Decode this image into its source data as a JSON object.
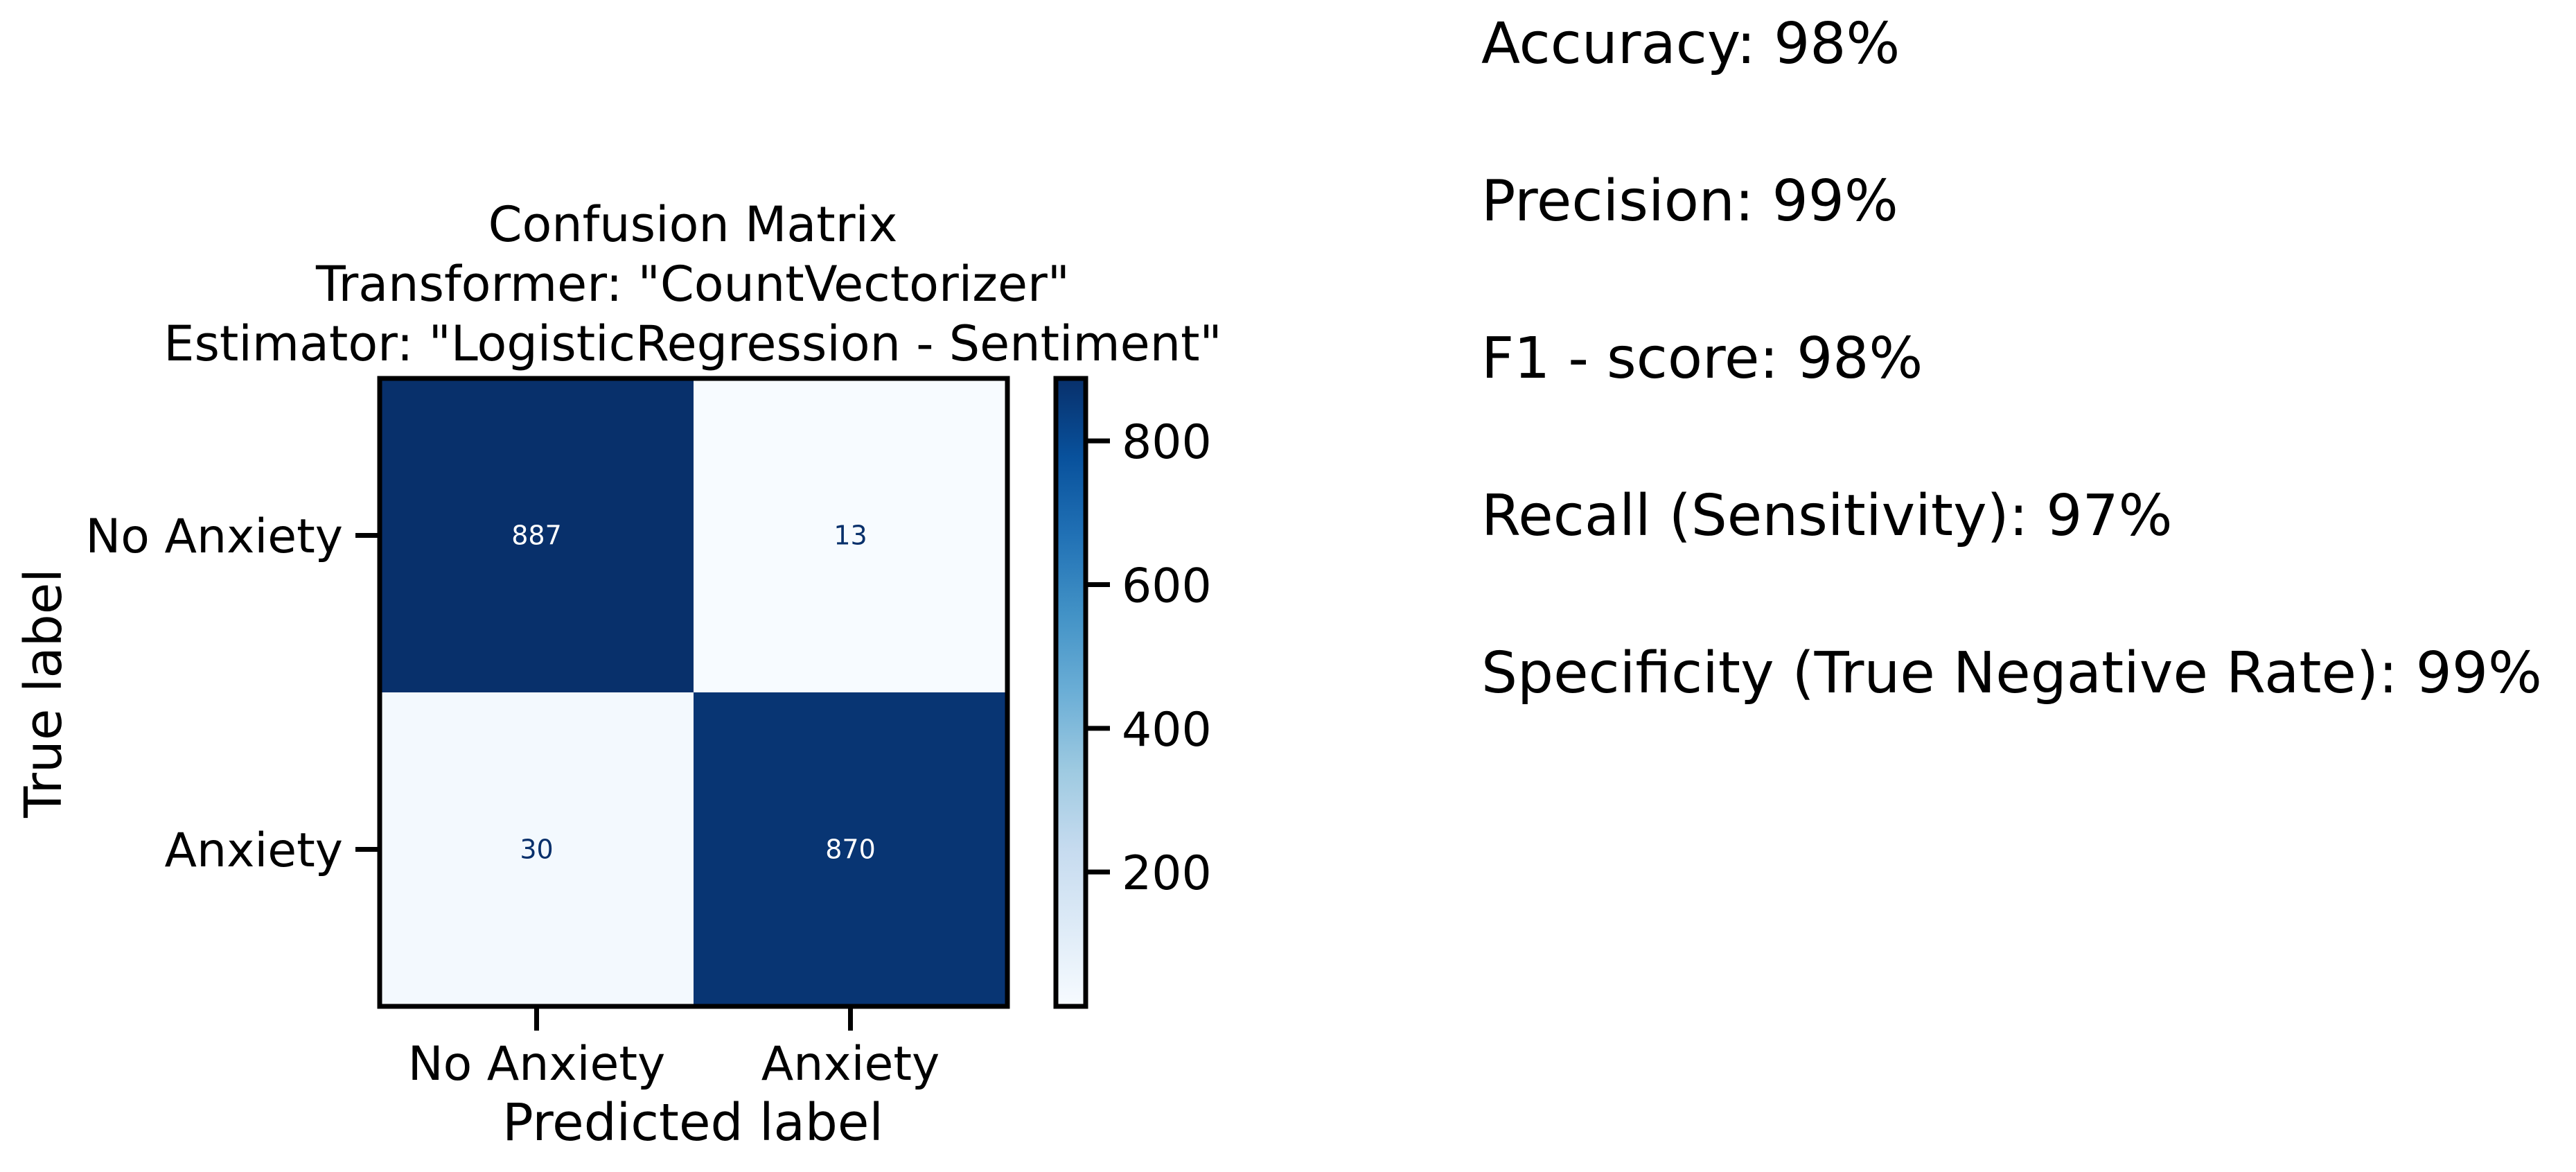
{
  "chart_data": {
    "type": "heatmap",
    "title_lines": [
      "Confusion Matrix",
      "Transformer: \"CountVectorizer\"",
      "Estimator: \"LogisticRegression - Sentiment\""
    ],
    "xlabel": "Predicted label",
    "ylabel": "True label",
    "x_categories": [
      "No Anxiety",
      "Anxiety"
    ],
    "y_categories": [
      "No Anxiety",
      "Anxiety"
    ],
    "matrix": [
      [
        887,
        13
      ],
      [
        30,
        870
      ]
    ],
    "colormap": "Blues",
    "colors": {
      "low": "#f7fbff",
      "high": "#08306b",
      "text_on_dark": "#ffffff",
      "text_on_light": "#08306b"
    },
    "colorbar": {
      "min": 13,
      "max": 887,
      "ticks": [
        200,
        400,
        600,
        800
      ]
    }
  },
  "metrics": [
    "Accuracy: 98%",
    "Precision: 99%",
    "F1 - score: 98%",
    "Recall (Sensitivity): 97%",
    "Specificity (True Negative Rate): 99%"
  ]
}
